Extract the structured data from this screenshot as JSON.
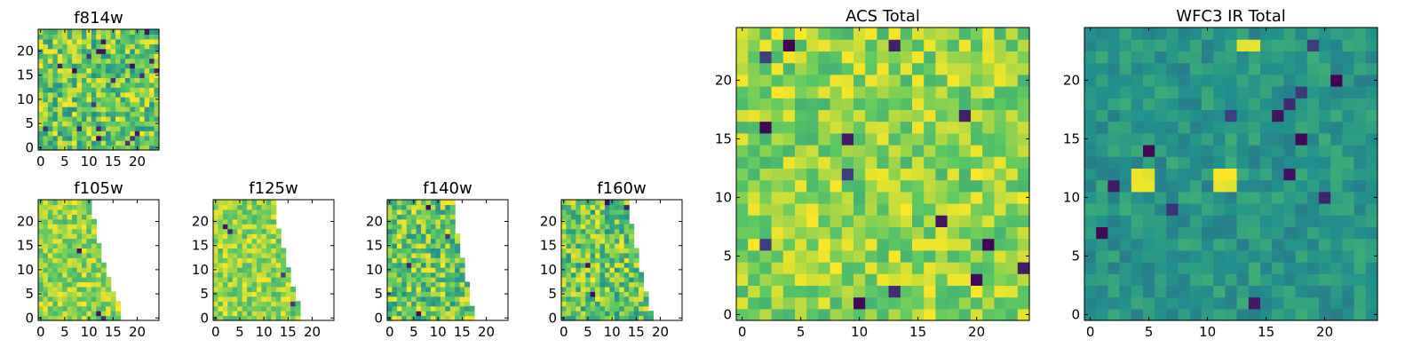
{
  "figure": {
    "background": "#ffffff"
  },
  "colormap": [
    "#440154",
    "#3b528b",
    "#21918c",
    "#5ec962",
    "#fde725"
  ],
  "chart_data": [
    {
      "type": "heatmap",
      "title": "f814w",
      "grid": 25,
      "xlim": [
        0,
        24
      ],
      "ylim": [
        0,
        24
      ],
      "xticks": [
        0,
        5,
        10,
        15,
        20
      ],
      "yticks": [
        0,
        5,
        10,
        15,
        20
      ],
      "xlabel": "",
      "ylabel": "",
      "seed": 11,
      "dark_cells": 20,
      "coverage": "full",
      "style": "noisy"
    },
    {
      "type": "heatmap",
      "title": "f105w",
      "grid": 25,
      "xlim": [
        0,
        24
      ],
      "ylim": [
        0,
        24
      ],
      "xticks": [
        0,
        5,
        10,
        15,
        20
      ],
      "yticks": [
        0,
        5,
        10,
        15,
        20
      ],
      "xlabel": "",
      "ylabel": "",
      "seed": 23,
      "dark_cells": 6,
      "coverage": "partial",
      "style": "bright"
    },
    {
      "type": "heatmap",
      "title": "f125w",
      "grid": 25,
      "xlim": [
        0,
        24
      ],
      "ylim": [
        0,
        24
      ],
      "xticks": [
        0,
        5,
        10,
        15,
        20
      ],
      "yticks": [
        0,
        5,
        10,
        15,
        20
      ],
      "xlabel": "",
      "ylabel": "",
      "seed": 37,
      "dark_cells": 4,
      "coverage": "partial",
      "style": "bright"
    },
    {
      "type": "heatmap",
      "title": "f140w",
      "grid": 25,
      "xlim": [
        0,
        24
      ],
      "ylim": [
        0,
        24
      ],
      "xticks": [
        0,
        5,
        10,
        15,
        20
      ],
      "yticks": [
        0,
        5,
        10,
        15,
        20
      ],
      "xlabel": "",
      "ylabel": "",
      "seed": 41,
      "dark_cells": 10,
      "coverage": "partial",
      "style": "mixed"
    },
    {
      "type": "heatmap",
      "title": "f160w",
      "grid": 25,
      "xlim": [
        0,
        24
      ],
      "ylim": [
        0,
        24
      ],
      "xticks": [
        0,
        5,
        10,
        15,
        20
      ],
      "yticks": [
        0,
        5,
        10,
        15,
        20
      ],
      "xlabel": "",
      "ylabel": "",
      "seed": 53,
      "dark_cells": 10,
      "coverage": "partial",
      "style": "mixed"
    },
    {
      "type": "heatmap",
      "title": "ACS Total",
      "grid": 25,
      "xlim": [
        0,
        24
      ],
      "ylim": [
        0,
        24
      ],
      "xticks": [
        0,
        5,
        10,
        15,
        20
      ],
      "yticks": [
        0,
        5,
        10,
        15,
        20
      ],
      "xlabel": "",
      "ylabel": "",
      "seed": 67,
      "dark_cells": 14,
      "coverage": "full",
      "style": "bright"
    },
    {
      "type": "heatmap",
      "title": "WFC3 IR Total",
      "grid": 25,
      "xlim": [
        0,
        24
      ],
      "ylim": [
        0,
        24
      ],
      "xticks": [
        0,
        5,
        10,
        15,
        20
      ],
      "yticks": [
        0,
        5,
        10,
        15,
        20
      ],
      "xlabel": "",
      "ylabel": "",
      "seed": 79,
      "dark_cells": 14,
      "coverage": "full",
      "style": "teal"
    }
  ]
}
